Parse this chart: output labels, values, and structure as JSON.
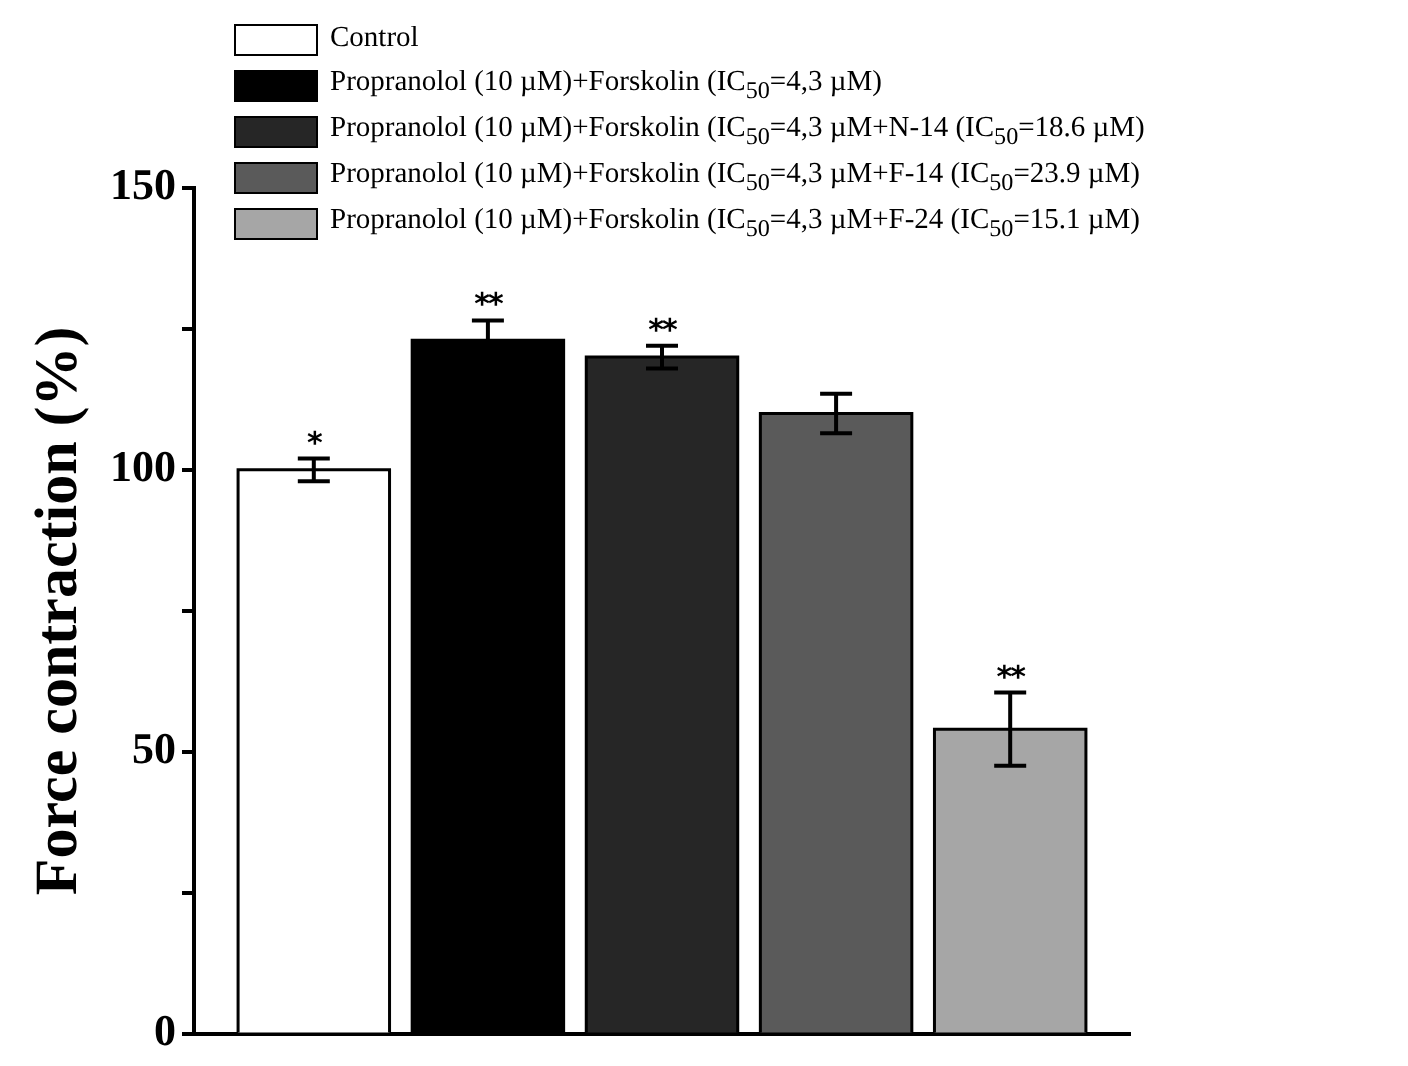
{
  "chart_data": {
    "type": "bar",
    "ylabel": "Force contraction (%)",
    "categories": [
      null
    ],
    "series": [
      {
        "name": "Control",
        "color": "#ffffff",
        "values": [
          100
        ],
        "errors": [
          2
        ],
        "value_labels": [
          "*"
        ]
      },
      {
        "name": "Propranolol (10 µM)+Forskolin (IC$_{50}$=4,3 µM)",
        "color": "#000000",
        "values": [
          123
        ],
        "errors": [
          3.5
        ],
        "value_labels": [
          "**"
        ]
      },
      {
        "name": "Propranolol (10 µM)+Forskolin (IC$_{50}$=4,3 µM+N-14 (IC$_{50}$=18.6 µM)",
        "color": "#262626",
        "values": [
          120
        ],
        "errors": [
          2
        ],
        "value_labels": [
          "**"
        ]
      },
      {
        "name": "Propranolol (10 µM)+Forskolin (IC$_{50}$=4,3 µM+F-14 (IC$_{50}$=23.9 µM)",
        "color": "#5a5a5a",
        "values": [
          110
        ],
        "errors": [
          3.5
        ]
      },
      {
        "name": "Propranolol (10 µM)+Forskolin (IC$_{50}$=4,3 µM+F-24 (IC$_{50}$=15.1 µM)",
        "color": "#a6a6a6",
        "values": [
          54
        ],
        "errors": [
          6.5
        ],
        "value_labels": [
          "**"
        ]
      }
    ],
    "ylim": [
      0,
      150
    ],
    "yticks": [
      0,
      {
        "value": 25,
        "label": null
      },
      50,
      {
        "value": 75,
        "label": null
      },
      100,
      {
        "value": 125,
        "label": null
      },
      150
    ],
    "tick_labels": "y",
    "grid": false,
    "legend": "top"
  }
}
